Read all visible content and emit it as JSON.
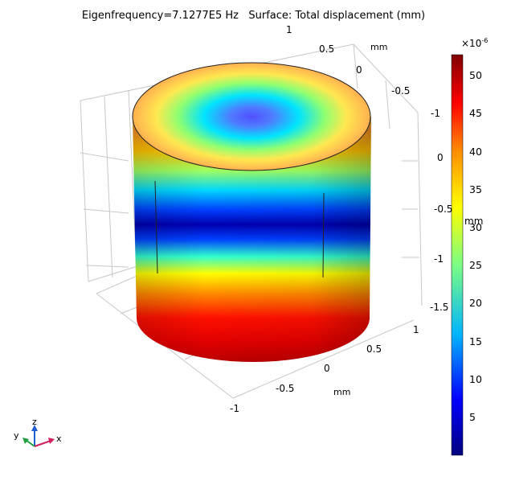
{
  "title": "Eigenfrequency=7.1277E5 Hz   Surface: Total displacement (mm)",
  "axes": {
    "y_ticks_top": [
      "1",
      "0.5",
      "0",
      "-0.5",
      "-1"
    ],
    "y_unit_top": "mm",
    "z_ticks": [
      "0",
      "-0.5",
      "-1",
      "-1.5"
    ],
    "z_unit": "mm",
    "x_ticks_bottom": [
      "1",
      "0.5",
      "0",
      "-0.5",
      "-1"
    ],
    "x_unit_bottom": "mm"
  },
  "colorbar": {
    "exponent": "×10",
    "exponent_power": "-6",
    "ticks": [
      "50",
      "45",
      "40",
      "35",
      "30",
      "25",
      "20",
      "15",
      "10",
      "5"
    ],
    "colormap": [
      "#00007f",
      "#0000ff",
      "#00c8ff",
      "#7fff7f",
      "#ffff00",
      "#ff7f00",
      "#ff0000",
      "#7f0000"
    ]
  },
  "triad": {
    "x_label": "x",
    "y_label": "y",
    "z_label": "z"
  }
}
